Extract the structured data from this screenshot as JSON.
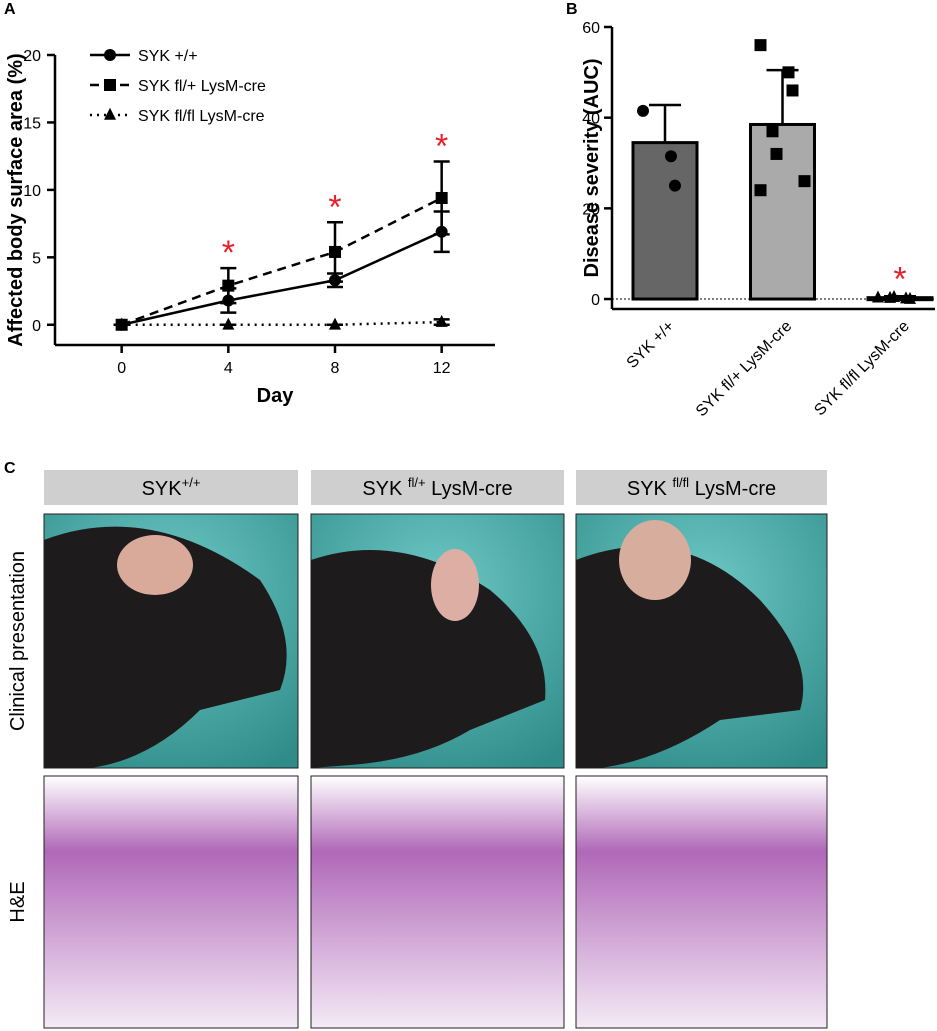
{
  "chart_data": [
    {
      "type": "line",
      "panel": "A",
      "x_label": "Day",
      "y_label": "Affected body surface area (%)",
      "x": [
        0,
        4,
        8,
        12
      ],
      "xlim": [
        -2.5,
        14
      ],
      "xticks": [
        0,
        4,
        8,
        12
      ],
      "ylim": [
        -1.5,
        20
      ],
      "yticks": [
        0,
        5,
        10,
        15,
        20
      ],
      "series": [
        {
          "name": "SYK +/+",
          "color": "#000000",
          "dash": "solid",
          "marker": "circle",
          "values": [
            0,
            1.8,
            3.3,
            6.9
          ],
          "errors": [
            0,
            0.9,
            0.5,
            1.5
          ]
        },
        {
          "name": "SYK fl/+ LysM-cre",
          "color": "#000000",
          "dash": "dashed",
          "marker": "square",
          "values": [
            0,
            2.9,
            5.4,
            9.4
          ],
          "errors": [
            0,
            1.3,
            2.2,
            2.7
          ]
        },
        {
          "name": "SYK fl/fl LysM-cre",
          "color": "#000000",
          "dash": "dotted",
          "marker": "triangle",
          "values": [
            0,
            0,
            0,
            0.2
          ],
          "errors": [
            0,
            0,
            0,
            0.2
          ]
        }
      ],
      "significance": [
        null,
        "*",
        "*",
        "*"
      ],
      "significance_color": "#e8202a",
      "legend": "top-left"
    },
    {
      "type": "bar",
      "panel": "B",
      "y_label": "Disease severity (AUC)",
      "categories": [
        "SYK +/+",
        "SYK fl/+ LysM-cre",
        "SYK fl/fl LysM-cre"
      ],
      "values": [
        34.5,
        38.5,
        0.3
      ],
      "errors": [
        8.3,
        12,
        0.3
      ],
      "colors": [
        "#666666",
        "#aaaaaa",
        "#000000"
      ],
      "points": [
        [
          41.5,
          31.5,
          25
        ],
        [
          56,
          50,
          46,
          37,
          32,
          26,
          24
        ],
        [
          0.3,
          0.1,
          0,
          0.2,
          0.4
        ]
      ],
      "point_markers": [
        "circle",
        "square",
        "triangle"
      ],
      "ylim": [
        -2.2,
        60
      ],
      "yticks": [
        0,
        20,
        40,
        60
      ],
      "significance": [
        null,
        null,
        "*"
      ],
      "significance_color": "#e8202a"
    }
  ],
  "panel_c": {
    "letter": "C",
    "columns": [
      {
        "base": "SYK",
        "sup": "+/+"
      },
      {
        "base": "SYK ",
        "sup": "fl/+",
        "suffix": " LysM-cre"
      },
      {
        "base": "SYK ",
        "sup": "fl/fl",
        "suffix": " LysM-cre"
      }
    ],
    "rows": [
      "Clinical presentation",
      "H&E"
    ]
  }
}
